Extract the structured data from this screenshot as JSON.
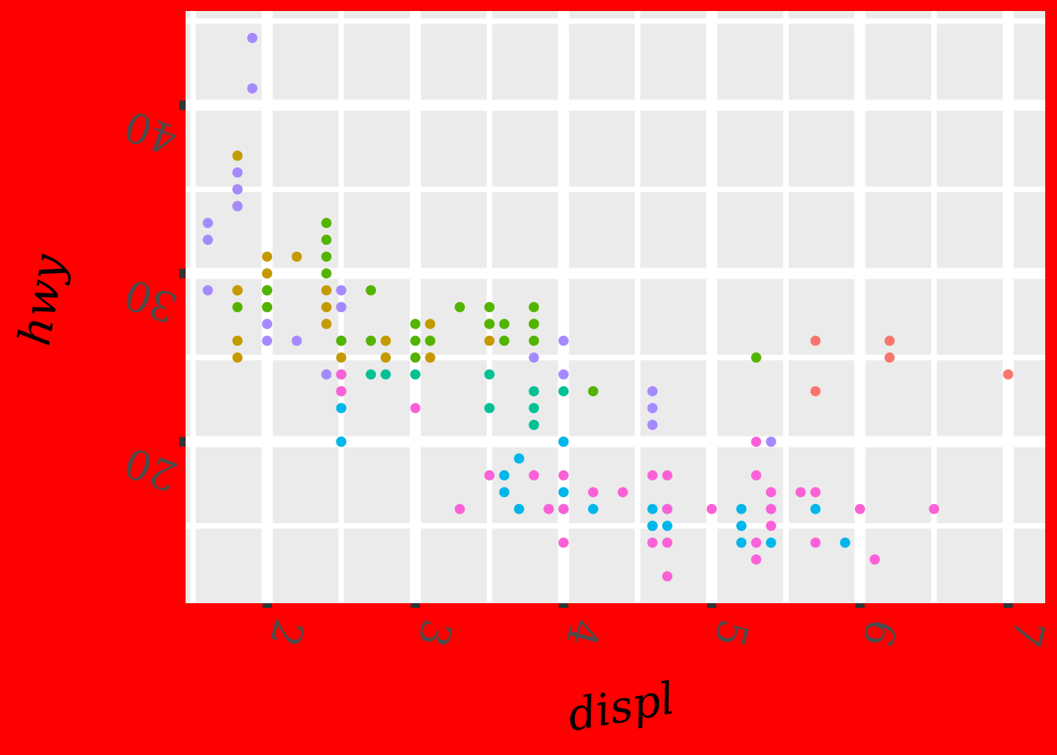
{
  "chart_data": {
    "type": "scatter",
    "title": "",
    "xlabel": "displ",
    "ylabel": "hwy",
    "xlim": [
      1.45,
      7.25
    ],
    "ylim": [
      10.4,
      45.6
    ],
    "x_ticks": [
      2,
      3,
      4,
      5,
      6,
      7
    ],
    "y_ticks": [
      20,
      30,
      40
    ],
    "x_tick_labels": [
      "2",
      "3",
      "4",
      "5",
      "6",
      "7"
    ],
    "y_tick_labels": [
      "20",
      "30",
      "40"
    ],
    "grid": true,
    "legend": "none",
    "panel_background": "#ebebeb",
    "plot_background": "#ff0000",
    "series": [
      {
        "color": "#f8766d",
        "points": [
          [
            5.7,
            26
          ],
          [
            5.7,
            23
          ],
          [
            6.2,
            26
          ],
          [
            6.2,
            25
          ],
          [
            7.0,
            24
          ]
        ]
      },
      {
        "color": "#c49a00",
        "points": [
          [
            1.8,
            29
          ],
          [
            1.8,
            29
          ],
          [
            2.0,
            31
          ],
          [
            2.0,
            30
          ],
          [
            2.8,
            26
          ],
          [
            2.8,
            26
          ],
          [
            3.1,
            27
          ],
          [
            1.8,
            26
          ],
          [
            1.8,
            25
          ],
          [
            2.0,
            28
          ],
          [
            2.0,
            29
          ],
          [
            2.8,
            25
          ],
          [
            2.8,
            25
          ],
          [
            3.1,
            25
          ],
          [
            3.1,
            25
          ],
          [
            1.8,
            37
          ],
          [
            1.8,
            35
          ],
          [
            1.8,
            29
          ],
          [
            2.4,
            29
          ],
          [
            2.4,
            27
          ],
          [
            2.5,
            25
          ],
          [
            2.5,
            24
          ],
          [
            2.5,
            23
          ],
          [
            3.5,
            26
          ],
          [
            1.8,
            34
          ],
          [
            2.0,
            30
          ],
          [
            2.4,
            28
          ],
          [
            2.2,
            31
          ]
        ]
      },
      {
        "color": "#53b400",
        "points": [
          [
            1.8,
            28
          ],
          [
            2.0,
            28
          ],
          [
            2.0,
            29
          ],
          [
            2.0,
            28
          ],
          [
            2.0,
            29
          ],
          [
            2.5,
            26
          ],
          [
            2.5,
            26
          ],
          [
            3.0,
            26
          ],
          [
            3.0,
            25
          ],
          [
            3.1,
            26
          ],
          [
            3.1,
            26
          ],
          [
            3.5,
            28
          ],
          [
            3.5,
            27
          ],
          [
            3.5,
            27
          ],
          [
            3.8,
            27
          ],
          [
            3.8,
            27
          ],
          [
            3.8,
            26
          ],
          [
            3.8,
            28
          ],
          [
            3.6,
            26
          ],
          [
            3.6,
            27
          ],
          [
            3.0,
            27
          ],
          [
            3.3,
            28
          ],
          [
            2.7,
            26
          ],
          [
            2.7,
            29
          ],
          [
            4.2,
            23
          ],
          [
            5.3,
            25
          ],
          [
            2.4,
            33
          ],
          [
            2.4,
            31
          ],
          [
            2.4,
            30
          ],
          [
            2.4,
            32
          ]
        ]
      },
      {
        "color": "#00c094",
        "points": [
          [
            2.8,
            24
          ],
          [
            3.0,
            24
          ],
          [
            3.5,
            22
          ],
          [
            3.5,
            24
          ],
          [
            3.8,
            23
          ],
          [
            3.8,
            22
          ],
          [
            3.8,
            21
          ],
          [
            4.0,
            23
          ],
          [
            2.7,
            24
          ]
        ]
      },
      {
        "color": "#00b6eb",
        "points": [
          [
            2.5,
            20
          ],
          [
            2.5,
            20
          ],
          [
            2.5,
            22
          ],
          [
            3.6,
            18
          ],
          [
            3.6,
            17
          ],
          [
            3.7,
            19
          ],
          [
            3.7,
            16
          ],
          [
            4.0,
            20
          ],
          [
            4.0,
            20
          ],
          [
            4.0,
            17
          ],
          [
            4.0,
            16
          ],
          [
            4.2,
            16
          ],
          [
            4.6,
            15
          ],
          [
            4.6,
            16
          ],
          [
            4.6,
            15
          ],
          [
            4.6,
            15
          ],
          [
            4.7,
            15
          ],
          [
            4.7,
            16
          ],
          [
            5.2,
            16
          ],
          [
            5.2,
            15
          ],
          [
            5.2,
            14
          ],
          [
            5.4,
            16
          ],
          [
            5.4,
            14
          ],
          [
            5.7,
            16
          ],
          [
            5.9,
            14
          ]
        ]
      },
      {
        "color": "#a58aff",
        "points": [
          [
            1.6,
            33
          ],
          [
            1.6,
            32
          ],
          [
            1.6,
            29
          ],
          [
            1.8,
            36
          ],
          [
            1.8,
            34
          ],
          [
            1.8,
            35
          ],
          [
            1.9,
            44
          ],
          [
            1.9,
            41
          ],
          [
            2.0,
            27
          ],
          [
            2.0,
            26
          ],
          [
            2.4,
            24
          ],
          [
            2.4,
            24
          ],
          [
            2.5,
            24
          ],
          [
            2.5,
            24
          ],
          [
            4.0,
            26
          ],
          [
            4.0,
            24
          ],
          [
            3.8,
            25
          ],
          [
            4.6,
            21
          ],
          [
            4.6,
            22
          ],
          [
            4.6,
            23
          ],
          [
            5.4,
            20
          ],
          [
            2.5,
            28
          ],
          [
            2.5,
            28
          ],
          [
            2.2,
            26
          ],
          [
            2.5,
            29
          ]
        ]
      },
      {
        "color": "#fb61d7",
        "points": [
          [
            2.5,
            23
          ],
          [
            3.0,
            22
          ],
          [
            3.3,
            16
          ],
          [
            3.8,
            18
          ],
          [
            3.9,
            16
          ],
          [
            4.0,
            18
          ],
          [
            4.0,
            16
          ],
          [
            4.0,
            14
          ],
          [
            4.2,
            17
          ],
          [
            4.4,
            17
          ],
          [
            4.6,
            18
          ],
          [
            4.6,
            14
          ],
          [
            4.7,
            18
          ],
          [
            4.7,
            14
          ],
          [
            4.7,
            12
          ],
          [
            4.7,
            16
          ],
          [
            5.0,
            16
          ],
          [
            5.3,
            20
          ],
          [
            5.3,
            18
          ],
          [
            5.3,
            14
          ],
          [
            5.3,
            13
          ],
          [
            5.4,
            17
          ],
          [
            5.4,
            16
          ],
          [
            5.4,
            15
          ],
          [
            5.6,
            17
          ],
          [
            5.7,
            17
          ],
          [
            5.7,
            14
          ],
          [
            6.0,
            16
          ],
          [
            6.1,
            13
          ],
          [
            6.5,
            16
          ],
          [
            2.5,
            23
          ],
          [
            2.5,
            24
          ],
          [
            3.5,
            18
          ],
          [
            3.9,
            16
          ]
        ]
      }
    ]
  }
}
